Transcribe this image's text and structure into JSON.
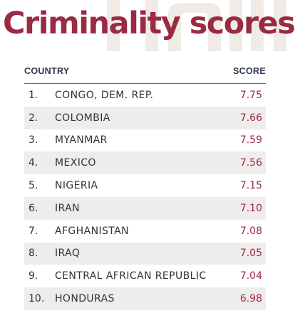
{
  "title": "Criminality scores",
  "colors": {
    "accent": "#9b2a43",
    "header_text": "#2c3550",
    "shaded_row": "#efedeb"
  },
  "table": {
    "headers": {
      "country": "COUNTRY",
      "score": "SCORE"
    },
    "rows": [
      {
        "rank": "1.",
        "country": "CONGO, DEM. REP.",
        "score": "7.75"
      },
      {
        "rank": "2.",
        "country": "COLOMBIA",
        "score": "7.66"
      },
      {
        "rank": "3.",
        "country": "MYANMAR",
        "score": "7.59"
      },
      {
        "rank": "4.",
        "country": "MEXICO",
        "score": "7.56"
      },
      {
        "rank": "5.",
        "country": "NIGERIA",
        "score": "7.15"
      },
      {
        "rank": "6.",
        "country": "IRAN",
        "score": "7.10"
      },
      {
        "rank": "7.",
        "country": "AFGHANISTAN",
        "score": "7.08"
      },
      {
        "rank": "8.",
        "country": "IRAQ",
        "score": "7.05"
      },
      {
        "rank": "9.",
        "country": "CENTRAL AFRICAN REPUBLIC",
        "score": "7.04"
      },
      {
        "rank": "10.",
        "country": "HONDURAS",
        "score": "6.98"
      }
    ]
  }
}
